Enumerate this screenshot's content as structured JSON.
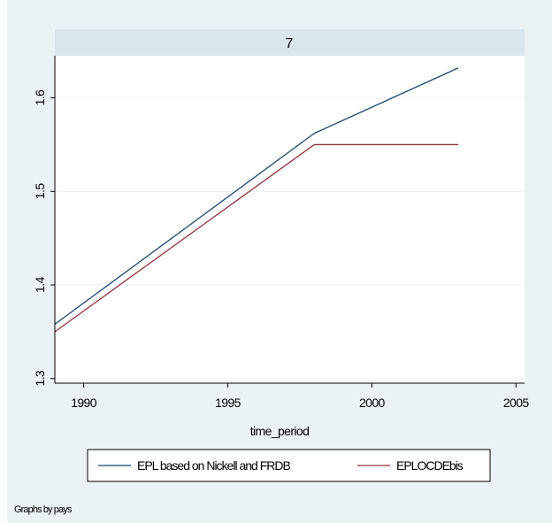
{
  "note": "Graphs by pays",
  "colors": {
    "background": "#eaf2f3",
    "plot_background": "#ffffff",
    "panel_header": "#d9e6eb",
    "grid": "#eaf2f3",
    "series_1": "#1a476f",
    "series_2": "#90353b"
  },
  "chart_data": {
    "type": "line",
    "panel_title": "7",
    "xlabel": "time_period",
    "ylabel": "",
    "xlim": [
      1989,
      2005.3
    ],
    "ylim": [
      1.295,
      1.645
    ],
    "x_ticks": [
      1990,
      1995,
      2000,
      2005
    ],
    "y_ticks": [
      1.3,
      1.4,
      1.5,
      1.6
    ],
    "y_tick_labels": [
      "1.3",
      "1.4",
      "1.5",
      "1.6"
    ],
    "grid": true,
    "legend_position": "bottom",
    "series": [
      {
        "name": "EPL based on Nickell and FRDB",
        "x": [
          1989,
          1998,
          2003
        ],
        "y": [
          1.358,
          1.562,
          1.632
        ]
      },
      {
        "name": "EPLOCDEbis",
        "x": [
          1989,
          1998,
          2003
        ],
        "y": [
          1.35,
          1.55,
          1.55
        ]
      }
    ]
  }
}
